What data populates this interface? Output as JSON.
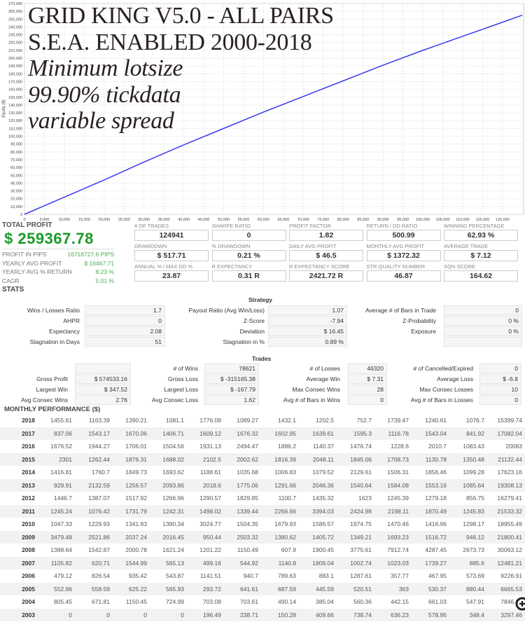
{
  "header": {
    "title_lines": [
      "GRID KING V5.0 - ALL PAIRS",
      "S.E.A. ENABLED 2000-2018",
      "Minimum lotsize",
      "99.90% tickdata",
      "variable spread"
    ]
  },
  "chart_data": {
    "type": "line",
    "title": "",
    "xlabel": "",
    "ylabel": "Equity ($)",
    "xlim": [
      0,
      124941
    ],
    "ylim": [
      0,
      270000
    ],
    "x_ticks": [
      0,
      5000,
      10000,
      15000,
      20000,
      25000,
      30000,
      35000,
      40000,
      45000,
      50000,
      55000,
      60000,
      65000,
      70000,
      75000,
      80000,
      85000,
      90000,
      95000,
      100000,
      105000,
      110000,
      115000,
      120000
    ],
    "y_ticks": [
      0,
      10000,
      20000,
      30000,
      40000,
      50000,
      60000,
      70000,
      80000,
      90000,
      100000,
      110000,
      120000,
      130000,
      140000,
      150000,
      160000,
      170000,
      180000,
      190000,
      200000,
      210000,
      220000,
      230000,
      240000,
      250000,
      260000,
      270000
    ],
    "grid": true,
    "series": [
      {
        "name": "Equity",
        "color": "#3b3bf0",
        "x": [
          0,
          10000,
          20000,
          30000,
          40000,
          50000,
          60000,
          70000,
          80000,
          90000,
          100000,
          110000,
          120000,
          124941
        ],
        "y": [
          0,
          22000,
          44000,
          67000,
          89000,
          110000,
          131000,
          151000,
          171000,
          191000,
          210000,
          228000,
          246000,
          255000
        ]
      }
    ]
  },
  "summary": {
    "total_profit_label": "TOTAL PROFIT",
    "total_profit": "$ 259367.78",
    "rows": [
      {
        "label": "PROFIT IN PIPS",
        "value": "16718727.6 PIPS"
      },
      {
        "label": "YEARLY AVG PROFIT",
        "value": "$ 16467.71"
      },
      {
        "label": "YEARLY AVG % RETURN",
        "value": "8.23 %"
      },
      {
        "label": "CAGR",
        "value": "5.01 %"
      }
    ]
  },
  "kpis": [
    {
      "label": "# OF TRADES",
      "value": "124941"
    },
    {
      "label": "SHARPE RATIO",
      "value": "0"
    },
    {
      "label": "PROFIT FACTOR",
      "value": "1.82"
    },
    {
      "label": "RETURN / DD RATIO",
      "value": "500.99"
    },
    {
      "label": "WINNING PERCENTAGE",
      "value": "62.93 %"
    },
    {
      "label": "DRAWDOWN",
      "value": "$ 517.71"
    },
    {
      "label": "% DRAWDOWN",
      "value": "0.21 %"
    },
    {
      "label": "DAILY AVG PROFIT",
      "value": "$ 46.5"
    },
    {
      "label": "MONTHLY AVG PROFIT",
      "value": "$ 1372.32"
    },
    {
      "label": "AVERAGE TRADE",
      "value": "$ 7.12"
    },
    {
      "label": "ANNUAL % / MAX DD %",
      "value": "23.87"
    },
    {
      "label": "R EXPECTANCY",
      "value": "0.31 R"
    },
    {
      "label": "R EXPECTANCY SCORE",
      "value": "2421.72 R"
    },
    {
      "label": "STR QUALITY NUMBER",
      "value": "46.87"
    },
    {
      "label": "SQN SCORE",
      "value": "164.62"
    }
  ],
  "stats_heading": "STATS",
  "strategy": {
    "title": "Strategy",
    "rows": [
      [
        {
          "label": "Wins / Losses Ratio",
          "value": "1.7"
        },
        {
          "label": "Payout Ratio (Avg Win/Loss)",
          "value": "1.07"
        },
        {
          "label": "Average # of Bars in Trade",
          "value": "0"
        }
      ],
      [
        {
          "label": "AHPR",
          "value": "0"
        },
        {
          "label": "Z-Score",
          "value": "-7.94"
        },
        {
          "label": "Z-Probability",
          "value": "0 %"
        }
      ],
      [
        {
          "label": "Expectancy",
          "value": "2.08"
        },
        {
          "label": "Deviation",
          "value": "$ 16.45"
        },
        {
          "label": "Exposure",
          "value": "0 %"
        }
      ],
      [
        {
          "label": "Stagnation in Days",
          "value": "51"
        },
        {
          "label": "Stagnation in %",
          "value": "0.89 %"
        },
        {
          "label": "",
          "value": ""
        }
      ]
    ]
  },
  "trades": {
    "title": "Trades",
    "rows": [
      [
        {
          "label": "",
          "value": ""
        },
        {
          "label": "# of Wins",
          "value": "78621"
        },
        {
          "label": "# of Losses",
          "value": "46320"
        },
        {
          "label": "# of Cancelled/Expired",
          "value": "0"
        }
      ],
      [
        {
          "label": "Gross Profit",
          "value": "$ 574533.16"
        },
        {
          "label": "Gross Loss",
          "value": "$ -315165.38"
        },
        {
          "label": "Average Win",
          "value": "$ 7.31"
        },
        {
          "label": "Average Loss",
          "value": "$ -6.8"
        }
      ],
      [
        {
          "label": "Largest Win",
          "value": "$ 347.52"
        },
        {
          "label": "Largest Loss",
          "value": "$ -167.79"
        },
        {
          "label": "Max Consec Wins",
          "value": "28"
        },
        {
          "label": "Max Consec Losses",
          "value": "10"
        }
      ],
      [
        {
          "label": "Avg Consec Wins",
          "value": "2.76"
        },
        {
          "label": "Avg Consec Loss",
          "value": "1.62"
        },
        {
          "label": "Avg # of Bars in Wins",
          "value": "0"
        },
        {
          "label": "Avg # of Bars in Losses",
          "value": "0"
        }
      ]
    ]
  },
  "monthly": {
    "title": "MONTHLY PERFORMANCE ($)",
    "rows": [
      [
        "2018",
        "1455.61",
        "1163.39",
        "1390.21",
        "1081.1",
        "1776.08",
        "1089.27",
        "1432.1",
        "1202.5",
        "752.7",
        "1739.47",
        "1240.61",
        "1076.7",
        "15399.74"
      ],
      [
        "2017",
        "837.06",
        "1543.17",
        "1670.06",
        "1406.71",
        "1609.12",
        "1676.32",
        "1602.95",
        "1639.61",
        "1595.3",
        "1116.78",
        "1543.04",
        "841.92",
        "17082.04"
      ],
      [
        "2016",
        "1676.52",
        "1944.27",
        "1706.01",
        "1504.56",
        "1931.13",
        "2494.47",
        "1886.2",
        "1140.37",
        "1476.74",
        "1228.6",
        "2010.7",
        "1083.43",
        "20083"
      ],
      [
        "2015",
        "2301",
        "1262.44",
        "1876.31",
        "1688.02",
        "2102.5",
        "2002.62",
        "1816.39",
        "2048.11",
        "1845.06",
        "1708.73",
        "1130.78",
        "1350.48",
        "21132.44"
      ],
      [
        "2014",
        "1416.81",
        "1760.7",
        "1849.73",
        "1693.62",
        "1188.61",
        "1035.68",
        "1006.83",
        "1079.52",
        "2129.61",
        "1506.31",
        "1856.46",
        "1099.28",
        "17623.16"
      ],
      [
        "2013",
        "929.91",
        "2132.59",
        "1256.57",
        "2093.86",
        "2018.6",
        "1775.06",
        "1291.66",
        "2046.36",
        "1540.64",
        "1584.08",
        "1553.16",
        "1085.64",
        "19308.13"
      ],
      [
        "2012",
        "1446.7",
        "1387.07",
        "1517.92",
        "1266.96",
        "1290.57",
        "1829.85",
        "1100.7",
        "1435.32",
        "1623",
        "1245.39",
        "1279.18",
        "856.75",
        "16279.41"
      ],
      [
        "2011",
        "1245.24",
        "1076.42",
        "1731.79",
        "1242.31",
        "1498.02",
        "1339.44",
        "2266.66",
        "3394.03",
        "2424.98",
        "2198.11",
        "1870.49",
        "1245.83",
        "21533.32"
      ],
      [
        "2010",
        "1047.33",
        "1229.93",
        "1341.93",
        "1380.34",
        "3024.77",
        "1504.35",
        "1679.93",
        "1586.57",
        "1974.75",
        "1470.46",
        "1416.96",
        "1298.17",
        "18955.49"
      ],
      [
        "2009",
        "3479.48",
        "2521.86",
        "2037.24",
        "2016.45",
        "950.44",
        "2503.32",
        "1380.62",
        "1405.72",
        "1349.21",
        "1693.23",
        "1516.72",
        "946.12",
        "21800.41"
      ],
      [
        "2008",
        "1388.64",
        "1542.87",
        "2000.78",
        "1621.24",
        "1201.22",
        "1150.49",
        "607.9",
        "1900.45",
        "3775.61",
        "7912.74",
        "4287.45",
        "2673.73",
        "30063.12"
      ],
      [
        "2007",
        "1105.82",
        "620.71",
        "1544.99",
        "565.13",
        "499.16",
        "544.92",
        "1140.8",
        "1809.04",
        "1002.74",
        "1023.03",
        "1739.27",
        "885.6",
        "12481.21"
      ],
      [
        "2006",
        "479.12",
        "826.54",
        "935.42",
        "543.87",
        "1141.51",
        "940.7",
        "789.63",
        "883.1",
        "1287.61",
        "357.77",
        "467.95",
        "573.69",
        "9226.91"
      ],
      [
        "2005",
        "552.96",
        "558.59",
        "625.22",
        "565.93",
        "293.72",
        "641.61",
        "687.59",
        "445.59",
        "520.51",
        "363",
        "530.37",
        "880.44",
        "6665.53"
      ],
      [
        "2004",
        "805.45",
        "671.81",
        "1150.45",
        "724.99",
        "703.08",
        "703.61",
        "490.14",
        "385.04",
        "560.36",
        "442.15",
        "661.03",
        "547.91",
        "7846.02"
      ],
      [
        "2003",
        "0",
        "0",
        "0",
        "0",
        "196.49",
        "238.71",
        "150.28",
        "409.66",
        "738.74",
        "636.23",
        "578.95",
        "348.4",
        "3297.46"
      ]
    ]
  }
}
